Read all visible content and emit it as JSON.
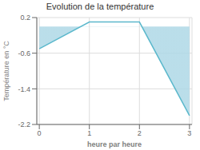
{
  "chart_data": {
    "type": "line",
    "title": "Evolution de la température",
    "xlabel": "heure par heure",
    "ylabel": "Température en °C",
    "x": [
      0,
      1,
      2,
      3
    ],
    "values": [
      -0.5,
      0.1,
      0.1,
      -2.0
    ],
    "color": "#5bb8cc",
    "xlim": [
      -0.05,
      3.05
    ],
    "ylim": [
      -2.2,
      0.2
    ],
    "xticks": [
      0,
      1,
      2,
      3
    ],
    "yticks": [
      0.2,
      -0.6,
      -1.4,
      -2.2
    ],
    "grid": true
  }
}
